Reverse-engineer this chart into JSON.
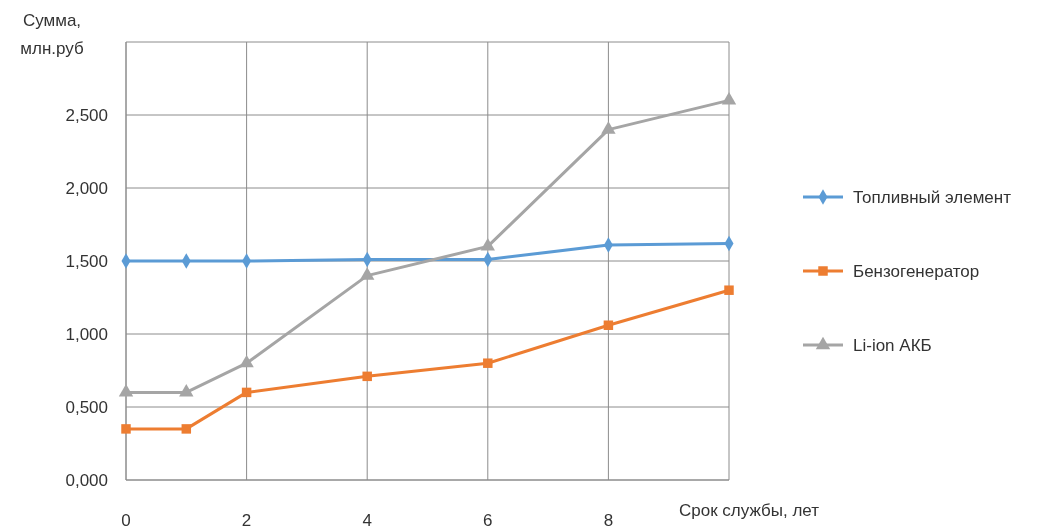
{
  "chart_data": {
    "type": "line",
    "xlabel": "Срок службы, лет",
    "ylabel": "Сумма, млн.руб",
    "xlim": [
      0,
      10
    ],
    "xticks": [
      0,
      2,
      4,
      6,
      8,
      {
        "value": 10,
        "label": null
      }
    ],
    "ylim": [
      0,
      3
    ],
    "yticks": [
      {
        "value": 0,
        "label": "0,000"
      },
      {
        "value": 0.5,
        "label": "0,500"
      },
      {
        "value": 1,
        "label": "1,000"
      },
      {
        "value": 1.5,
        "label": "1,500"
      },
      {
        "value": 2,
        "label": "2,000"
      },
      {
        "value": 2.5,
        "label": "2,500"
      },
      {
        "value": 3,
        "label": null
      }
    ],
    "x": [
      0,
      1,
      2,
      4,
      6,
      8,
      10
    ],
    "grid": true,
    "legend": "right",
    "series": [
      {
        "name": "Топливный элемент",
        "color": "#5b9bd5",
        "marker": "diamond",
        "values": [
          1.5,
          1.5,
          1.5,
          1.51,
          1.51,
          1.61,
          1.62
        ]
      },
      {
        "name": "Бензогенератор",
        "color": "#ed7d31",
        "marker": "square",
        "values": [
          0.35,
          0.35,
          0.6,
          0.71,
          0.8,
          1.06,
          1.3
        ]
      },
      {
        "name": "Li-ion АКБ",
        "color": "#a5a5a5",
        "marker": "triangle",
        "values": [
          0.6,
          0.6,
          0.8,
          1.4,
          1.6,
          2.4,
          2.6
        ]
      }
    ]
  }
}
